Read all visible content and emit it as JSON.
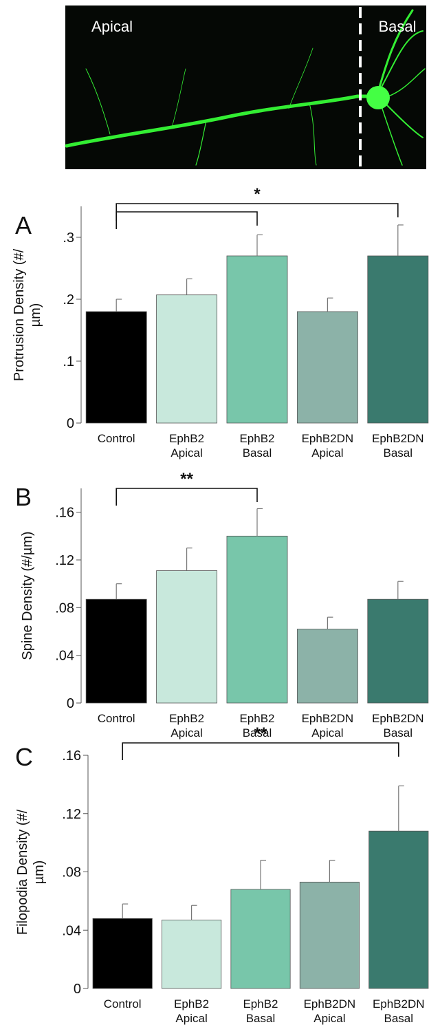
{
  "image": {
    "labels": [
      "Apical",
      "Basal"
    ]
  },
  "chart_data": [
    {
      "type": "bar",
      "panel": "A",
      "ylabel": "Protrusion Density (#/µm)",
      "categories": [
        "Control",
        "EphB2 Apical",
        "EphB2 Basal",
        "EphB2DN Apical",
        "EphB2DN Basal"
      ],
      "values": [
        0.18,
        0.207,
        0.27,
        0.18,
        0.27
      ],
      "errors": [
        0.02,
        0.026,
        0.034,
        0.022,
        0.05
      ],
      "colors": [
        "#000000",
        "#c8e8dc",
        "#78c6aa",
        "#8cb2a8",
        "#3a7a6e"
      ],
      "ylim": [
        0,
        0.35
      ],
      "yticks": [
        0,
        {
          "value": 0.1,
          "label": ".1"
        },
        {
          "value": 0.2,
          "label": ".2"
        },
        {
          "value": 0.3,
          "label": ".3"
        }
      ],
      "significance": [
        {
          "from": 0,
          "to": 4,
          "label": "*"
        },
        {
          "from": 0,
          "to": 2
        }
      ]
    },
    {
      "type": "bar",
      "panel": "B",
      "ylabel": "Spine Density (#/µm)",
      "categories": [
        "Control",
        "EphB2 Apical",
        "EphB2 Basal",
        "EphB2DN Apical",
        "EphB2DN Basal"
      ],
      "values": [
        0.087,
        0.111,
        0.14,
        0.062,
        0.087
      ],
      "errors": [
        0.013,
        0.019,
        0.023,
        0.01,
        0.015
      ],
      "colors": [
        "#000000",
        "#c8e8dc",
        "#78c6aa",
        "#8cb2a8",
        "#3a7a6e"
      ],
      "ylim": [
        0,
        0.18
      ],
      "yticks": [
        0,
        {
          "value": 0.04,
          "label": ".04"
        },
        {
          "value": 0.08,
          "label": ".08"
        },
        {
          "value": 0.12,
          "label": ".12"
        },
        {
          "value": 0.16,
          "label": ".16"
        }
      ],
      "significance": [
        {
          "from": 0,
          "to": 2,
          "label": "**"
        }
      ]
    },
    {
      "type": "bar",
      "panel": "C",
      "ylabel": "Filopodia Density (#/µm)",
      "categories": [
        "Control",
        "EphB2 Apical",
        "EphB2 Basal",
        "EphB2DN Apical",
        "EphB2DN Basal"
      ],
      "values": [
        0.048,
        0.047,
        0.068,
        0.073,
        0.108
      ],
      "errors": [
        0.01,
        0.01,
        0.02,
        0.015,
        0.031
      ],
      "colors": [
        "#000000",
        "#c8e8dc",
        "#78c6aa",
        "#8cb2a8",
        "#3a7a6e"
      ],
      "ylim": [
        0,
        0.16
      ],
      "yticks": [
        0,
        {
          "value": 0.04,
          "label": ".04"
        },
        {
          "value": 0.08,
          "label": ".08"
        },
        {
          "value": 0.12,
          "label": ".12"
        },
        {
          "value": 0.16,
          "label": ".16"
        }
      ],
      "significance": [
        {
          "from": 0,
          "to": 4,
          "label": "**"
        }
      ]
    }
  ]
}
